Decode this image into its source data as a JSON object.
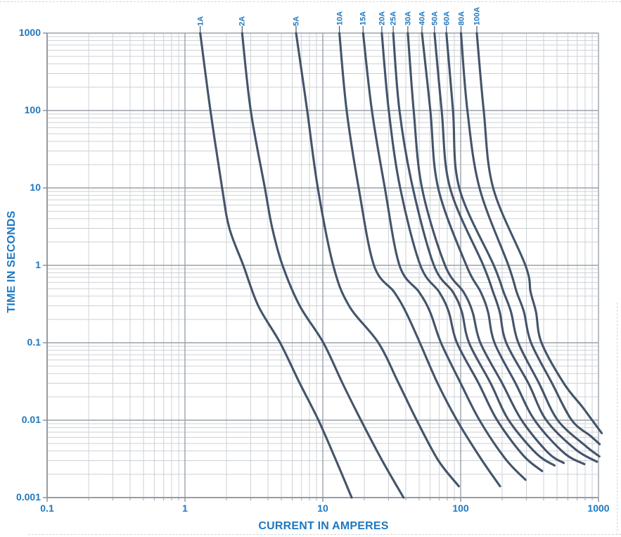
{
  "colors": {
    "label_blue": "#1e78c0",
    "curve": "#44546a",
    "grid_minor": "#cdd1d6",
    "grid_major": "#9ba2aa",
    "axis": "#878e96"
  },
  "chart_data": {
    "type": "line",
    "title": "",
    "xlabel": "CURRENT IN AMPERES",
    "ylabel": "TIME IN SECONDS",
    "x_scale": "log",
    "y_scale": "log",
    "xlim": [
      0.1,
      1000
    ],
    "ylim": [
      0.001,
      1000
    ],
    "x_ticks": [
      "0.1",
      "1",
      "10",
      "100",
      "1000"
    ],
    "y_ticks": [
      "1000",
      "100",
      "10",
      "1",
      "0.1",
      "0.01",
      "0.001"
    ],
    "grid": "log major and minor gridlines, gray on white",
    "legend_position": "rotated curve-rating labels above plot top with leader lines",
    "series": [
      {
        "name": "1A",
        "points": [
          [
            1.29,
            1000
          ],
          [
            1.53,
            100
          ],
          [
            1.86,
            10
          ],
          [
            2.1,
            3
          ],
          [
            2.65,
            1
          ],
          [
            3.4,
            0.3
          ],
          [
            4.9,
            0.1
          ],
          [
            6.8,
            0.03
          ],
          [
            9.3,
            0.01
          ],
          [
            12.5,
            0.003
          ],
          [
            16.2,
            0.001
          ]
        ]
      },
      {
        "name": "2A",
        "points": [
          [
            2.6,
            1000
          ],
          [
            3.0,
            100
          ],
          [
            3.8,
            10
          ],
          [
            4.3,
            3
          ],
          [
            5.1,
            1
          ],
          [
            6.8,
            0.3
          ],
          [
            10.1,
            0.1
          ],
          [
            13.9,
            0.03
          ],
          [
            18.9,
            0.01
          ],
          [
            27,
            0.003
          ],
          [
            38.5,
            0.001
          ]
        ]
      },
      {
        "name": "5A",
        "points": [
          [
            6.4,
            1000
          ],
          [
            7.7,
            100
          ],
          [
            9.2,
            10
          ],
          [
            11.9,
            1
          ],
          [
            15.5,
            0.3
          ],
          [
            25.3,
            0.1
          ],
          [
            35.5,
            0.03
          ],
          [
            48,
            0.01
          ],
          [
            69,
            0.003
          ],
          [
            97,
            0.0014
          ]
        ]
      },
      {
        "name": "10A",
        "points": [
          [
            13.2,
            1000
          ],
          [
            14.9,
            100
          ],
          [
            18.2,
            10
          ],
          [
            23.5,
            1
          ],
          [
            33,
            0.45
          ],
          [
            40,
            0.25
          ],
          [
            50.6,
            0.1
          ],
          [
            68,
            0.03
          ],
          [
            94,
            0.01
          ],
          [
            140,
            0.0032
          ],
          [
            193,
            0.0014
          ]
        ]
      },
      {
        "name": "15A",
        "points": [
          [
            19.6,
            1000
          ],
          [
            22.7,
            100
          ],
          [
            28.2,
            10
          ],
          [
            36,
            1
          ],
          [
            50,
            0.45
          ],
          [
            60,
            0.25
          ],
          [
            72,
            0.1
          ],
          [
            100,
            0.03
          ],
          [
            137,
            0.01
          ],
          [
            210,
            0.0032
          ],
          [
            295,
            0.0017
          ]
        ]
      },
      {
        "name": "20A",
        "points": [
          [
            26.8,
            1000
          ],
          [
            30.1,
            100
          ],
          [
            36.4,
            10
          ],
          [
            51,
            1
          ],
          [
            70,
            0.45
          ],
          [
            82,
            0.25
          ],
          [
            94,
            0.1
          ],
          [
            135,
            0.03
          ],
          [
            184,
            0.01
          ],
          [
            285,
            0.0035
          ],
          [
            390,
            0.0022
          ]
        ]
      },
      {
        "name": "25A",
        "points": [
          [
            32.4,
            1000
          ],
          [
            36,
            100
          ],
          [
            45,
            10
          ],
          [
            64,
            1
          ],
          [
            88,
            0.45
          ],
          [
            102,
            0.25
          ],
          [
            115,
            0.1
          ],
          [
            165,
            0.03
          ],
          [
            223,
            0.01
          ],
          [
            355,
            0.0037
          ],
          [
            480,
            0.0026
          ]
        ]
      },
      {
        "name": "30A",
        "points": [
          [
            41.4,
            1000
          ],
          [
            45.6,
            100
          ],
          [
            52.4,
            10
          ],
          [
            77,
            1
          ],
          [
            105,
            0.45
          ],
          [
            122,
            0.25
          ],
          [
            139,
            0.1
          ],
          [
            200,
            0.03
          ],
          [
            277,
            0.01
          ],
          [
            430,
            0.0038
          ],
          [
            560,
            0.0028
          ]
        ]
      },
      {
        "name": "40A",
        "points": [
          [
            52.4,
            1000
          ],
          [
            60.3,
            100
          ],
          [
            68.7,
            10
          ],
          [
            110,
            1
          ],
          [
            140,
            0.45
          ],
          [
            158,
            0.25
          ],
          [
            176,
            0.1
          ],
          [
            250,
            0.03
          ],
          [
            344,
            0.01
          ],
          [
            560,
            0.0038
          ],
          [
            790,
            0.0027
          ]
        ]
      },
      {
        "name": "50A",
        "points": [
          [
            64.6,
            1000
          ],
          [
            72.8,
            100
          ],
          [
            83.7,
            10
          ],
          [
            146,
            1
          ],
          [
            172,
            0.45
          ],
          [
            192,
            0.25
          ],
          [
            214,
            0.1
          ],
          [
            310,
            0.03
          ],
          [
            418,
            0.01
          ],
          [
            680,
            0.0042
          ],
          [
            975,
            0.0029
          ]
        ]
      },
      {
        "name": "60A",
        "points": [
          [
            78.8,
            1000
          ],
          [
            88,
            100
          ],
          [
            97.7,
            10
          ],
          [
            174,
            1
          ],
          [
            205,
            0.45
          ],
          [
            232,
            0.25
          ],
          [
            262,
            0.1
          ],
          [
            370,
            0.03
          ],
          [
            506,
            0.01
          ],
          [
            800,
            0.0047
          ],
          [
            1015,
            0.0034
          ]
        ]
      },
      {
        "name": "80A",
        "points": [
          [
            100.6,
            1000
          ],
          [
            112,
            100
          ],
          [
            137,
            10
          ],
          [
            222,
            1
          ],
          [
            255,
            0.45
          ],
          [
            288,
            0.25
          ],
          [
            324,
            0.1
          ],
          [
            460,
            0.03
          ],
          [
            640,
            0.01
          ],
          [
            880,
            0.0062
          ],
          [
            1020,
            0.0049
          ]
        ]
      },
      {
        "name": "100A",
        "points": [
          [
            131,
            1000
          ],
          [
            147,
            100
          ],
          [
            172,
            10
          ],
          [
            295,
            1
          ],
          [
            322,
            0.45
          ],
          [
            352,
            0.25
          ],
          [
            386,
            0.1
          ],
          [
            560,
            0.03
          ],
          [
            760,
            0.015
          ],
          [
            900,
            0.01
          ],
          [
            1055,
            0.0068
          ]
        ]
      }
    ]
  }
}
